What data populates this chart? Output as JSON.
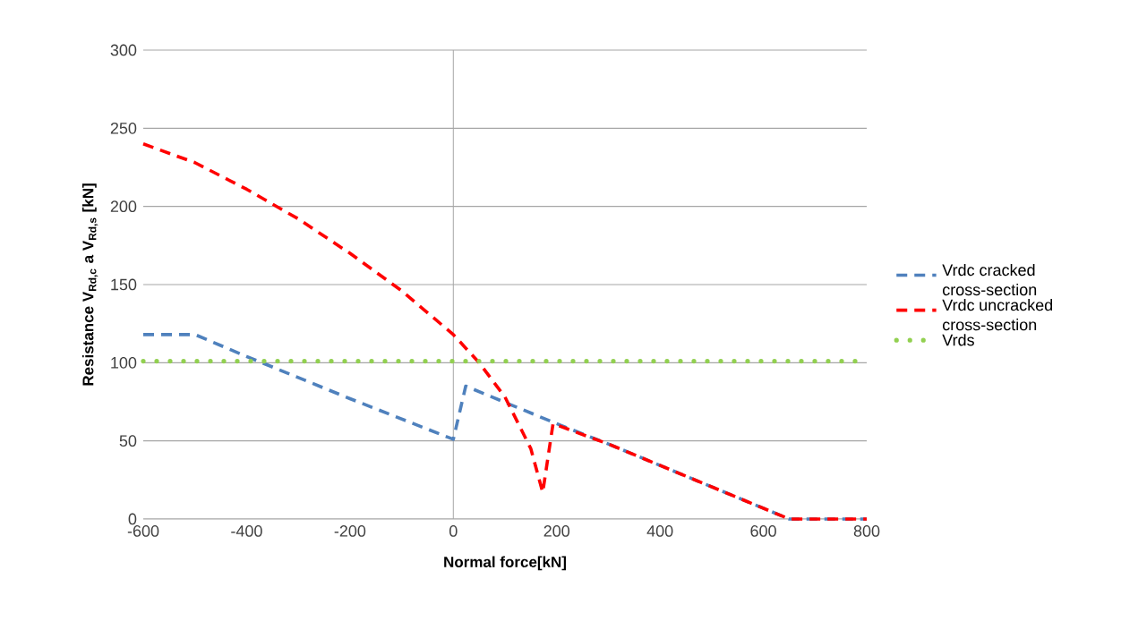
{
  "chart_data": {
    "type": "line",
    "xlabel": "Normal force[kN]",
    "ylabel": "Resistance V$_{Rd,c}$ a V$_{Rd,s}$ [kN]",
    "series": [
      {
        "name": "Vrdc cracked cross-section",
        "color": "#4f81bd",
        "line_style": "dashed",
        "x": [
          -600,
          -500,
          -400,
          -200,
          0,
          24,
          200,
          300,
          650,
          800
        ],
        "values": [
          118,
          118,
          104,
          77,
          51,
          85,
          61,
          48,
          0,
          0
        ]
      },
      {
        "name": "Vrdc uncracked cross-section",
        "color": "#ff0000",
        "line_style": "dashed",
        "x": [
          -600,
          -500,
          -400,
          -300,
          -200,
          -100,
          0,
          50,
          100,
          150,
          173,
          193,
          300,
          650,
          800
        ],
        "values": [
          240,
          228,
          211,
          192,
          170,
          146,
          118,
          100,
          78,
          45,
          17,
          61,
          48,
          0,
          0
        ]
      },
      {
        "name": "Vrds",
        "color": "#92d050",
        "line_style": "dotted",
        "x": [
          -600,
          800
        ],
        "values": [
          101,
          101
        ]
      }
    ],
    "xlim": [
      -600,
      800
    ],
    "xticks": [
      -600,
      -400,
      -200,
      0,
      200,
      400,
      600,
      800
    ],
    "ylim": [
      0,
      300
    ],
    "yticks": [
      0,
      50,
      100,
      150,
      200,
      250,
      300
    ],
    "ref_lines": [
      {
        "axis": "x",
        "value": 0,
        "color": "#a6a6a6"
      }
    ],
    "grid": "y",
    "legend": "right"
  }
}
